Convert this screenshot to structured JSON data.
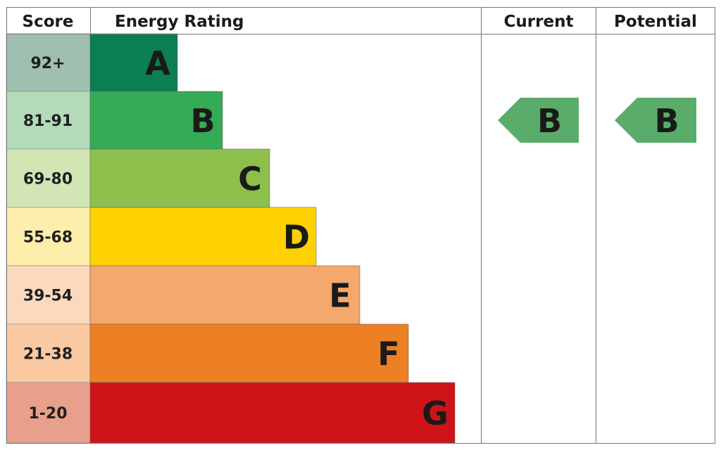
{
  "chart_data": {
    "type": "table",
    "headers": {
      "score": "Score",
      "rating": "Energy Rating",
      "current": "Current",
      "potential": "Potential"
    },
    "bands": [
      {
        "letter": "A",
        "score": "92+",
        "color": "#0b7e52",
        "score_bg": "#9fbfb1"
      },
      {
        "letter": "B",
        "score": "81-91",
        "color": "#35ab55",
        "score_bg": "#b4dbb8"
      },
      {
        "letter": "C",
        "score": "69-80",
        "color": "#8dbf4d",
        "score_bg": "#d1e5b5"
      },
      {
        "letter": "D",
        "score": "55-68",
        "color": "#fed200",
        "score_bg": "#fdeeab"
      },
      {
        "letter": "E",
        "score": "39-54",
        "color": "#f5a86b",
        "score_bg": "#fbd9be"
      },
      {
        "letter": "F",
        "score": "21-38",
        "color": "#ed8025",
        "score_bg": "#fbc9a1"
      },
      {
        "letter": "G",
        "score": "1-20",
        "color": "#cf1419",
        "score_bg": "#e8a08c"
      }
    ],
    "current": {
      "letter": "B",
      "color": "#5aac6a"
    },
    "potential": {
      "letter": "B",
      "color": "#5aac6a"
    }
  }
}
